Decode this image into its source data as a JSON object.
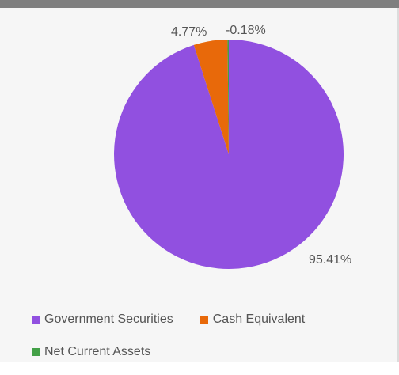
{
  "chart_data": {
    "type": "pie",
    "title": "",
    "slices": [
      {
        "name": "Government Securities",
        "value": 95.41,
        "label": "95.41%",
        "color": "#9150e0"
      },
      {
        "name": "Cash Equivalent",
        "value": 4.77,
        "label": "4.77%",
        "color": "#e8690a"
      },
      {
        "name": "Net Current Assets",
        "value": -0.18,
        "label": "-0.18%",
        "color": "#43a047"
      }
    ],
    "legend_position": "bottom-left"
  },
  "legend": {
    "items": [
      {
        "label": "Government Securities",
        "color": "#9150e0"
      },
      {
        "label": "Cash Equivalent",
        "color": "#e8690a"
      },
      {
        "label": "Net Current Assets",
        "color": "#43a047"
      }
    ]
  }
}
